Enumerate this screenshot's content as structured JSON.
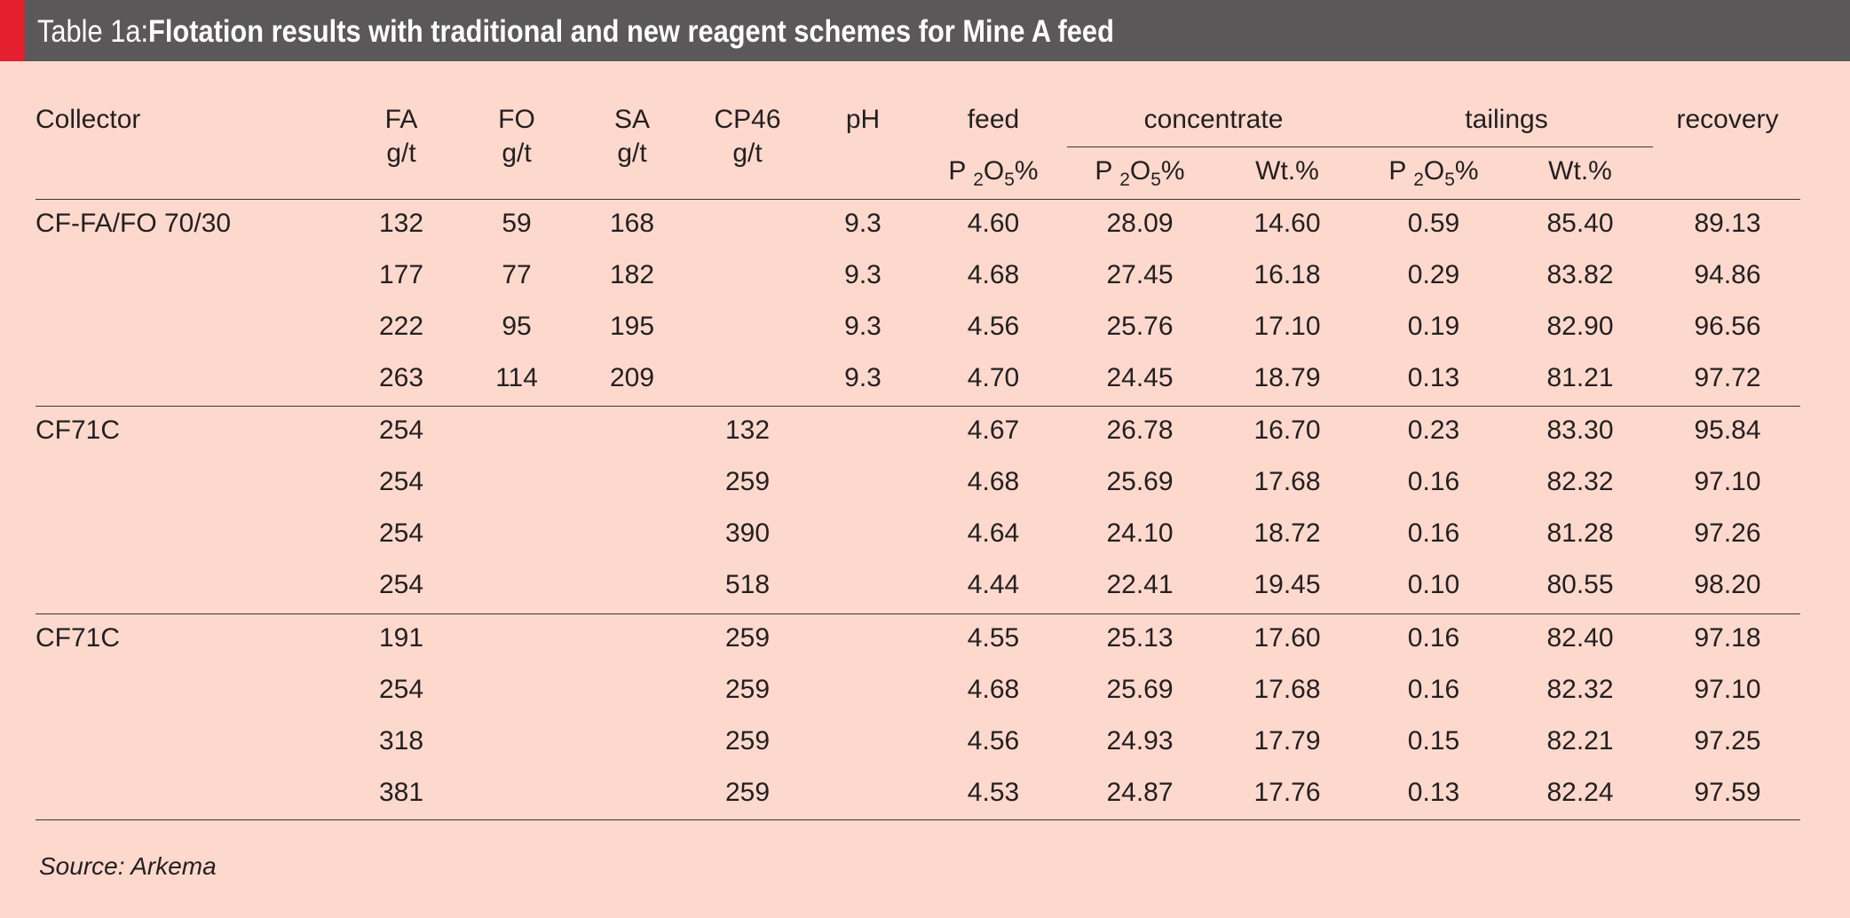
{
  "title": {
    "prefix": "Table 1a:",
    "main": "Flotation results with traditional and new reagent schemes for Mine A feed"
  },
  "headers": {
    "collector": "Collector",
    "fa": "FA",
    "fo": "FO",
    "sa": "SA",
    "cp46": "CP46",
    "unit": "g/t",
    "ph": "pH",
    "feed": "feed",
    "concentrate": "concentrate",
    "tailings": "tailings",
    "recovery": "recovery",
    "p": "P",
    "sub2": "2",
    "o": "O",
    "sub5": "5",
    "pct": "%",
    "wt": "Wt.%"
  },
  "groups": [
    {
      "collector": "CF-FA/FO 70/30",
      "rows": [
        {
          "fa": "132",
          "fo": "59",
          "sa": "168",
          "cp46": "",
          "ph": "9.3",
          "feed": "4.60",
          "conc_p": "28.09",
          "conc_wt": "14.60",
          "tail_p": "0.59",
          "tail_wt": "85.40",
          "recovery": "89.13"
        },
        {
          "fa": "177",
          "fo": "77",
          "sa": "182",
          "cp46": "",
          "ph": "9.3",
          "feed": "4.68",
          "conc_p": "27.45",
          "conc_wt": "16.18",
          "tail_p": "0.29",
          "tail_wt": "83.82",
          "recovery": "94.86"
        },
        {
          "fa": "222",
          "fo": "95",
          "sa": "195",
          "cp46": "",
          "ph": "9.3",
          "feed": "4.56",
          "conc_p": "25.76",
          "conc_wt": "17.10",
          "tail_p": "0.19",
          "tail_wt": "82.90",
          "recovery": "96.56"
        },
        {
          "fa": "263",
          "fo": "114",
          "sa": "209",
          "cp46": "",
          "ph": "9.3",
          "feed": "4.70",
          "conc_p": "24.45",
          "conc_wt": "18.79",
          "tail_p": "0.13",
          "tail_wt": "81.21",
          "recovery": "97.72"
        }
      ]
    },
    {
      "collector": "CF71C",
      "rows": [
        {
          "fa": "254",
          "fo": "",
          "sa": "",
          "cp46": "132",
          "ph": "",
          "feed": "4.67",
          "conc_p": "26.78",
          "conc_wt": "16.70",
          "tail_p": "0.23",
          "tail_wt": "83.30",
          "recovery": "95.84"
        },
        {
          "fa": "254",
          "fo": "",
          "sa": "",
          "cp46": "259",
          "ph": "",
          "feed": "4.68",
          "conc_p": "25.69",
          "conc_wt": "17.68",
          "tail_p": "0.16",
          "tail_wt": "82.32",
          "recovery": "97.10"
        },
        {
          "fa": "254",
          "fo": "",
          "sa": "",
          "cp46": "390",
          "ph": "",
          "feed": "4.64",
          "conc_p": "24.10",
          "conc_wt": "18.72",
          "tail_p": "0.16",
          "tail_wt": "81.28",
          "recovery": "97.26"
        },
        {
          "fa": "254",
          "fo": "",
          "sa": "",
          "cp46": "518",
          "ph": "",
          "feed": "4.44",
          "conc_p": "22.41",
          "conc_wt": "19.45",
          "tail_p": "0.10",
          "tail_wt": "80.55",
          "recovery": "98.20"
        }
      ]
    },
    {
      "collector": "CF71C",
      "rows": [
        {
          "fa": "191",
          "fo": "",
          "sa": "",
          "cp46": "259",
          "ph": "",
          "feed": "4.55",
          "conc_p": "25.13",
          "conc_wt": "17.60",
          "tail_p": "0.16",
          "tail_wt": "82.40",
          "recovery": "97.18"
        },
        {
          "fa": "254",
          "fo": "",
          "sa": "",
          "cp46": "259",
          "ph": "",
          "feed": "4.68",
          "conc_p": "25.69",
          "conc_wt": "17.68",
          "tail_p": "0.16",
          "tail_wt": "82.32",
          "recovery": "97.10"
        },
        {
          "fa": "318",
          "fo": "",
          "sa": "",
          "cp46": "259",
          "ph": "",
          "feed": "4.56",
          "conc_p": "24.93",
          "conc_wt": "17.79",
          "tail_p": "0.15",
          "tail_wt": "82.21",
          "recovery": "97.25"
        },
        {
          "fa": "381",
          "fo": "",
          "sa": "",
          "cp46": "259",
          "ph": "",
          "feed": "4.53",
          "conc_p": "24.87",
          "conc_wt": "17.76",
          "tail_p": "0.13",
          "tail_wt": "82.24",
          "recovery": "97.59"
        }
      ]
    }
  ],
  "source": "Source: Arkema",
  "colors": {
    "background": "#fdd9cd",
    "title_bar": "#5a5859",
    "accent": "#e5202e"
  }
}
